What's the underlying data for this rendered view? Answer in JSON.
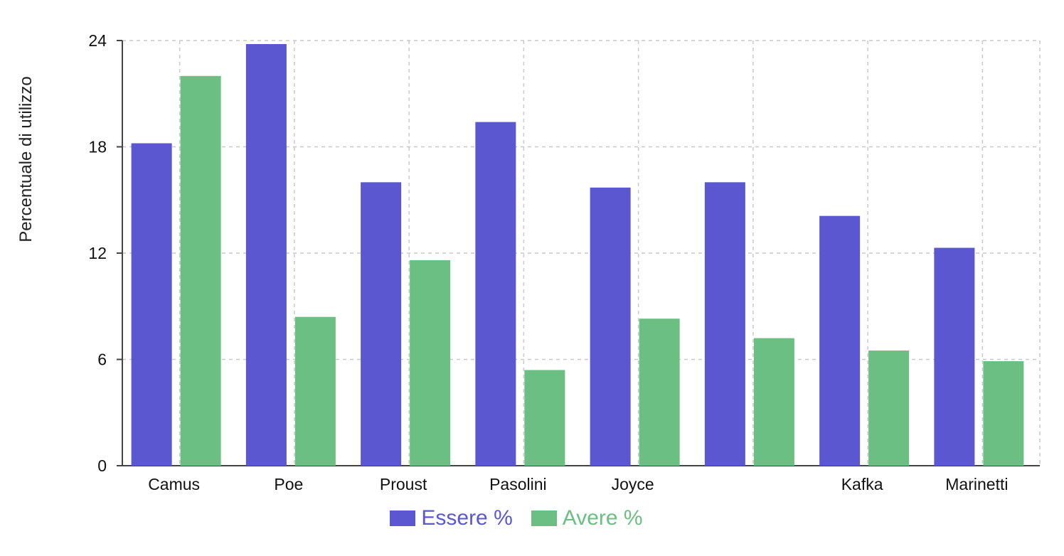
{
  "chart_data": {
    "type": "bar",
    "title": "",
    "xlabel": "",
    "ylabel": "Percentuale di utilizzo",
    "ylim": [
      0,
      24
    ],
    "yticks": [
      "0",
      "6",
      "12",
      "18",
      "24"
    ],
    "grid": true,
    "legend_position": "bottom",
    "categories": [
      "Camus",
      "Poe",
      "Proust",
      "Pasolini",
      "Joyce",
      "",
      "Kafka",
      "Marinetti"
    ],
    "series": [
      {
        "name": "Essere %",
        "color": "#5a57d1",
        "values": [
          18.2,
          23.8,
          16.0,
          19.4,
          15.7,
          16.0,
          14.1,
          12.3
        ]
      },
      {
        "name": "Avere %",
        "color": "#6bbf82",
        "values": [
          22.0,
          8.4,
          11.6,
          5.4,
          8.3,
          7.2,
          6.5,
          5.9
        ]
      }
    ]
  }
}
